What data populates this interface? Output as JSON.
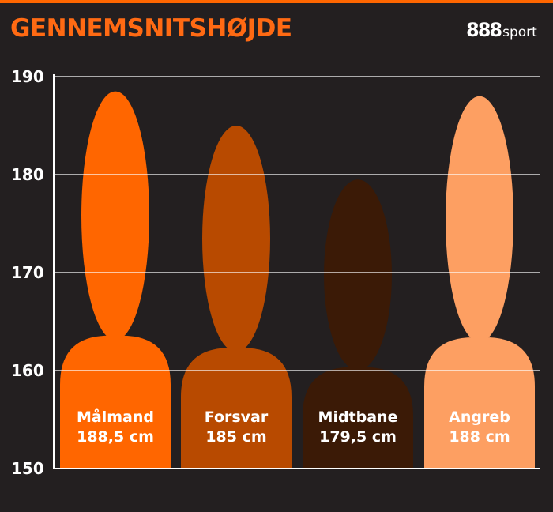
{
  "header": {
    "title": "GENNEMSNITSHØJDE",
    "logo_digits": "888",
    "logo_word": "sport"
  },
  "colors": {
    "background": "#231f20",
    "accent": "#ff6a13",
    "gridline": "#ffffff"
  },
  "chart_data": {
    "type": "bar",
    "title": "GENNEMSNITSHØJDE",
    "xlabel": "",
    "ylabel": "",
    "ylim": [
      150,
      190
    ],
    "yticks": [
      150,
      160,
      170,
      180,
      190
    ],
    "grid": true,
    "categories": [
      "Målmand",
      "Forsvar",
      "Midtbane",
      "Angreb"
    ],
    "values": [
      188.5,
      185,
      179.5,
      188
    ],
    "value_labels": [
      "188,5 cm",
      "185 cm",
      "179,5 cm",
      "188 cm"
    ],
    "bar_colors": [
      "#ff6600",
      "#b84a00",
      "#3b1a06",
      "#fd9f62"
    ],
    "mark_shape": "human-silhouette"
  }
}
